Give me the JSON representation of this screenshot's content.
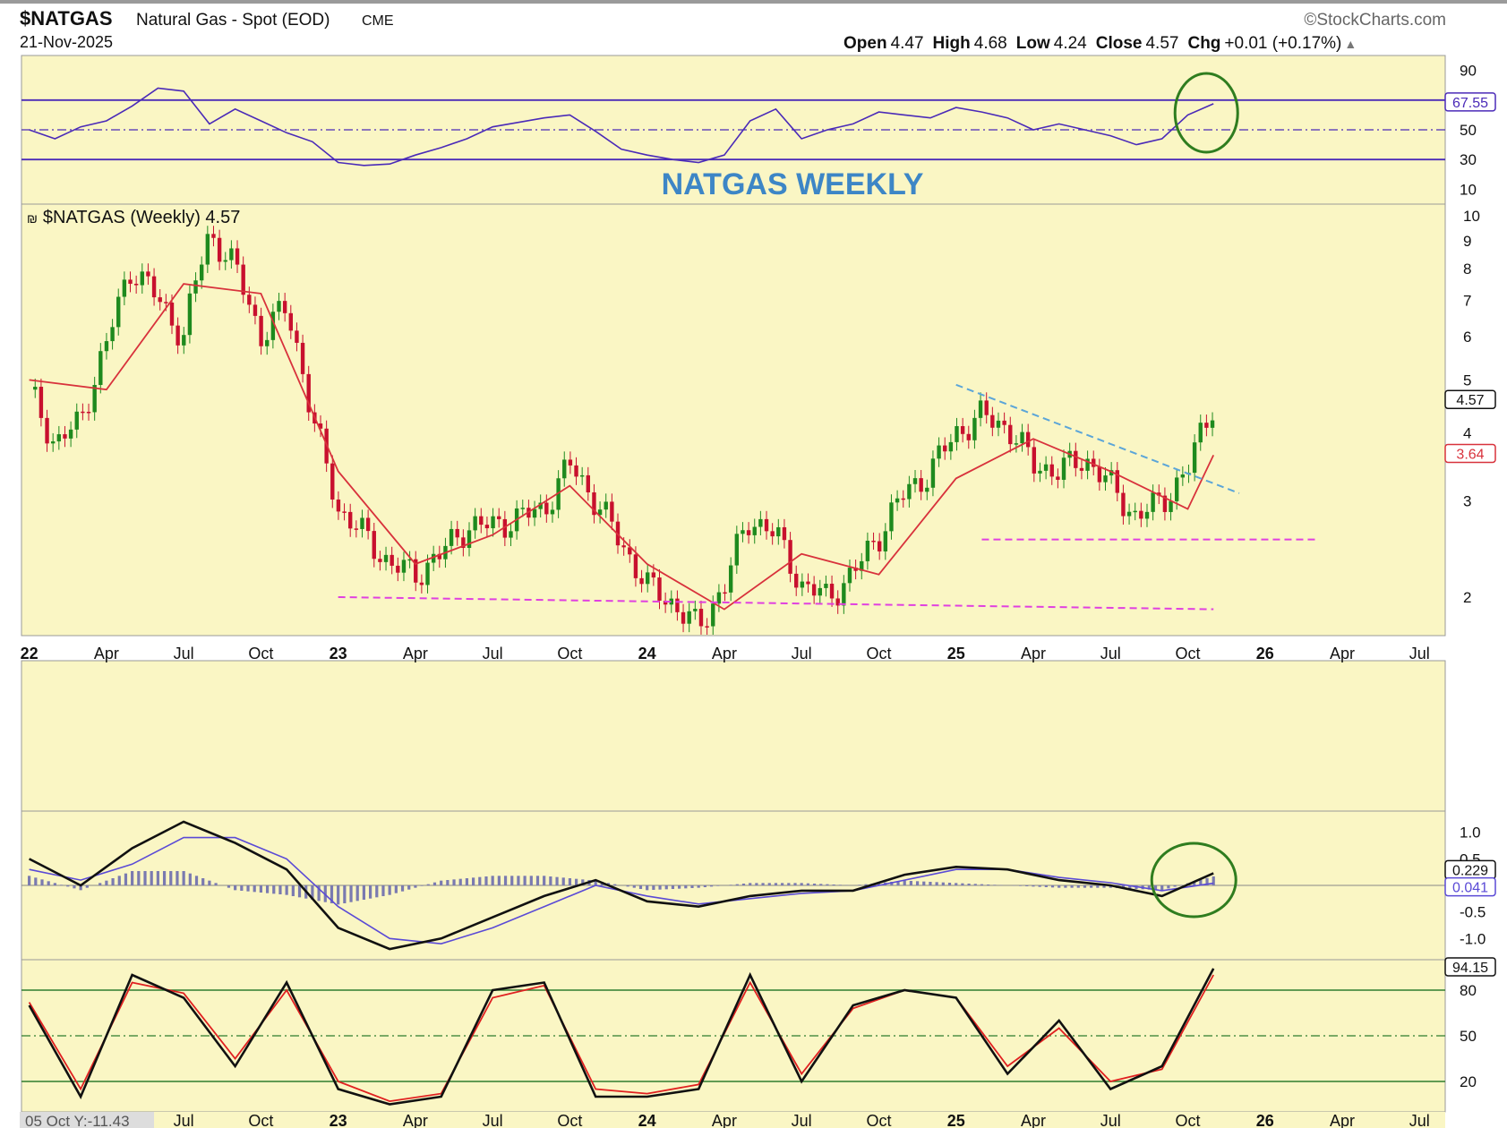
{
  "header": {
    "symbol": "$NATGAS",
    "name": "Natural Gas - Spot (EOD)",
    "exchange": "CME",
    "date": "21-Nov-2025",
    "brand": "©StockCharts.com",
    "open_label": "Open",
    "open": "4.47",
    "high_label": "High",
    "high": "4.68",
    "low_label": "Low",
    "low": "4.24",
    "close_label": "Close",
    "close": "4.57",
    "chg_label": "Chg",
    "chg": "+0.01 (+0.17%)",
    "chg_arrow": "▲"
  },
  "annotation_title": "NATGAS WEEKLY",
  "price_legend": "$NATGAS (Weekly) 4.57",
  "bottom_left_readout": "05 Oct Y:-11.43",
  "colors": {
    "panel_bg": "#faf6c4",
    "up_candle": "#1e8a1e",
    "down_candle": "#c8102e",
    "ma": "#d8323c",
    "rsi_line": "#4a2ab8",
    "macd_line": "#111111",
    "signal_line": "#5a4ad6",
    "histogram": "#7a7ab0",
    "support": "#e040e0",
    "trendline": "#5ba5d8",
    "circle": "#2f7d1f",
    "title_blue": "#3d86c6",
    "stoch_k": "#111111",
    "stoch_d": "#e02020"
  },
  "chart_data": [
    {
      "panel": "rsi",
      "type": "line",
      "ylim": [
        0,
        100
      ],
      "y_ticks": [
        "90",
        "50",
        "30",
        "10"
      ],
      "levels": [
        70,
        50,
        30
      ],
      "last_value_label": "67.55",
      "x": [
        "2022-01",
        "2022-02",
        "2022-03",
        "2022-04",
        "2022-05",
        "2022-06",
        "2022-07",
        "2022-08",
        "2022-09",
        "2022-10",
        "2022-11",
        "2022-12",
        "2023-01",
        "2023-02",
        "2023-03",
        "2023-04",
        "2023-05",
        "2023-06",
        "2023-07",
        "2023-08",
        "2023-09",
        "2023-10",
        "2023-11",
        "2023-12",
        "2024-01",
        "2024-02",
        "2024-03",
        "2024-04",
        "2024-05",
        "2024-06",
        "2024-07",
        "2024-08",
        "2024-09",
        "2024-10",
        "2024-11",
        "2024-12",
        "2025-01",
        "2025-02",
        "2025-03",
        "2025-04",
        "2025-05",
        "2025-06",
        "2025-07",
        "2025-08",
        "2025-09",
        "2025-10",
        "2025-11"
      ],
      "values": [
        50,
        44,
        52,
        56,
        66,
        78,
        76,
        54,
        64,
        56,
        48,
        42,
        28,
        26,
        27,
        33,
        38,
        44,
        52,
        55,
        58,
        60,
        49,
        37,
        33,
        30,
        28,
        33,
        56,
        64,
        44,
        50,
        54,
        62,
        60,
        58,
        65,
        62,
        58,
        50,
        54,
        50,
        46,
        40,
        44,
        60,
        67.55
      ]
    },
    {
      "panel": "price",
      "type": "candlestick",
      "log_scale": true,
      "ylim": [
        1.7,
        10.5
      ],
      "y_ticks": [
        "10",
        "9",
        "8",
        "7",
        "6",
        "5",
        "4",
        "3",
        "2"
      ],
      "x_ticks": [
        "22",
        "Apr",
        "Jul",
        "Oct",
        "23",
        "Apr",
        "Jul",
        "Oct",
        "24",
        "Apr",
        "Jul",
        "Oct",
        "25",
        "Apr",
        "Jul",
        "Oct",
        "26",
        "Apr",
        "Jul"
      ],
      "series": [
        {
          "name": "$NATGAS (Weekly)",
          "last": "4.57",
          "x": [
            "2022-01",
            "2022-02",
            "2022-03",
            "2022-04",
            "2022-05",
            "2022-06",
            "2022-07",
            "2022-08",
            "2022-09",
            "2022-10",
            "2022-11",
            "2022-12",
            "2023-01",
            "2023-02",
            "2023-03",
            "2023-04",
            "2023-05",
            "2023-06",
            "2023-07",
            "2023-08",
            "2023-09",
            "2023-10",
            "2023-11",
            "2023-12",
            "2024-01",
            "2024-02",
            "2024-03",
            "2024-04",
            "2024-05",
            "2024-06",
            "2024-07",
            "2024-08",
            "2024-09",
            "2024-10",
            "2024-11",
            "2024-12",
            "2025-01",
            "2025-02",
            "2025-03",
            "2025-04",
            "2025-05",
            "2025-06",
            "2025-07",
            "2025-08",
            "2025-09",
            "2025-10",
            "2025-11"
          ],
          "close": [
            4.8,
            3.8,
            4.2,
            5.8,
            8.1,
            7.0,
            6.0,
            9.3,
            8.0,
            6.0,
            6.8,
            4.2,
            2.9,
            2.6,
            2.3,
            2.2,
            2.4,
            2.7,
            2.7,
            2.8,
            2.9,
            3.5,
            3.0,
            2.5,
            2.1,
            1.95,
            1.75,
            2.1,
            2.8,
            2.6,
            2.1,
            2.0,
            2.2,
            2.6,
            3.1,
            3.4,
            4.0,
            4.3,
            4.1,
            3.5,
            3.4,
            3.6,
            3.2,
            2.8,
            3.0,
            3.4,
            4.57
          ]
        },
        {
          "name": "MA",
          "last": "3.64",
          "x": [
            "2022-01",
            "2022-04",
            "2022-07",
            "2022-10",
            "2023-01",
            "2023-04",
            "2023-07",
            "2023-10",
            "2024-01",
            "2024-04",
            "2024-07",
            "2024-10",
            "2025-01",
            "2025-04",
            "2025-07",
            "2025-10",
            "2025-11"
          ],
          "values": [
            5.0,
            4.8,
            7.5,
            7.2,
            3.4,
            2.3,
            2.6,
            3.2,
            2.3,
            1.9,
            2.4,
            2.2,
            3.3,
            3.9,
            3.4,
            2.9,
            3.64
          ]
        }
      ],
      "support_lines": [
        {
          "from": [
            "2023-01",
            2.0
          ],
          "to": [
            "2025-11",
            1.9
          ]
        },
        {
          "from": [
            "2025-02",
            2.55
          ],
          "to": [
            "2026-03",
            2.55
          ]
        }
      ],
      "trendline": {
        "from": [
          "2025-01",
          4.9
        ],
        "to": [
          "2025-12",
          3.1
        ]
      }
    },
    {
      "panel": "macd",
      "type": "line",
      "ylim": [
        -1.4,
        1.4
      ],
      "y_ticks": [
        "1.0",
        "0.5",
        "-0.5",
        "-1.0"
      ],
      "last_value_labels": [
        "0.229",
        "0.041"
      ],
      "x": [
        "2022-01",
        "2022-03",
        "2022-05",
        "2022-07",
        "2022-09",
        "2022-11",
        "2023-01",
        "2023-03",
        "2023-05",
        "2023-07",
        "2023-09",
        "2023-11",
        "2024-01",
        "2024-03",
        "2024-05",
        "2024-07",
        "2024-09",
        "2024-11",
        "2025-01",
        "2025-03",
        "2025-05",
        "2025-07",
        "2025-09",
        "2025-11"
      ],
      "series": [
        {
          "name": "MACD",
          "values": [
            0.5,
            0.0,
            0.7,
            1.2,
            0.8,
            0.3,
            -0.8,
            -1.2,
            -1.0,
            -0.6,
            -0.2,
            0.1,
            -0.3,
            -0.4,
            -0.2,
            -0.1,
            -0.1,
            0.2,
            0.35,
            0.3,
            0.1,
            0.0,
            -0.2,
            0.229
          ]
        },
        {
          "name": "Signal",
          "values": [
            0.3,
            0.1,
            0.4,
            0.9,
            0.9,
            0.5,
            -0.4,
            -1.0,
            -1.1,
            -0.8,
            -0.4,
            0.0,
            -0.2,
            -0.35,
            -0.25,
            -0.15,
            -0.1,
            0.1,
            0.3,
            0.3,
            0.15,
            0.05,
            -0.1,
            0.041
          ]
        }
      ]
    },
    {
      "panel": "stochastic",
      "type": "line",
      "ylim": [
        0,
        100
      ],
      "y_ticks": [
        "80",
        "50",
        "20"
      ],
      "levels": [
        80,
        50,
        20
      ],
      "last_value_label": "94.15",
      "x_ticks": [
        "Jul",
        "Oct",
        "23",
        "Apr",
        "Jul",
        "Oct",
        "24",
        "Apr",
        "Jul",
        "Oct",
        "25",
        "Apr",
        "Jul",
        "Oct",
        "26",
        "Apr",
        "Jul"
      ],
      "x": [
        "2022-01",
        "2022-03",
        "2022-05",
        "2022-07",
        "2022-09",
        "2022-11",
        "2023-01",
        "2023-03",
        "2023-05",
        "2023-07",
        "2023-09",
        "2023-11",
        "2024-01",
        "2024-03",
        "2024-05",
        "2024-07",
        "2024-09",
        "2024-11",
        "2025-01",
        "2025-03",
        "2025-05",
        "2025-07",
        "2025-09",
        "2025-11"
      ],
      "series": [
        {
          "name": "%K",
          "values": [
            70,
            10,
            90,
            75,
            30,
            85,
            15,
            5,
            10,
            80,
            85,
            10,
            10,
            15,
            90,
            20,
            70,
            80,
            75,
            25,
            60,
            15,
            30,
            94.15
          ]
        },
        {
          "name": "%D",
          "values": [
            72,
            15,
            85,
            78,
            35,
            80,
            20,
            7,
            12,
            75,
            83,
            15,
            12,
            18,
            85,
            25,
            68,
            80,
            75,
            30,
            55,
            20,
            28,
            90
          ]
        }
      ]
    }
  ]
}
